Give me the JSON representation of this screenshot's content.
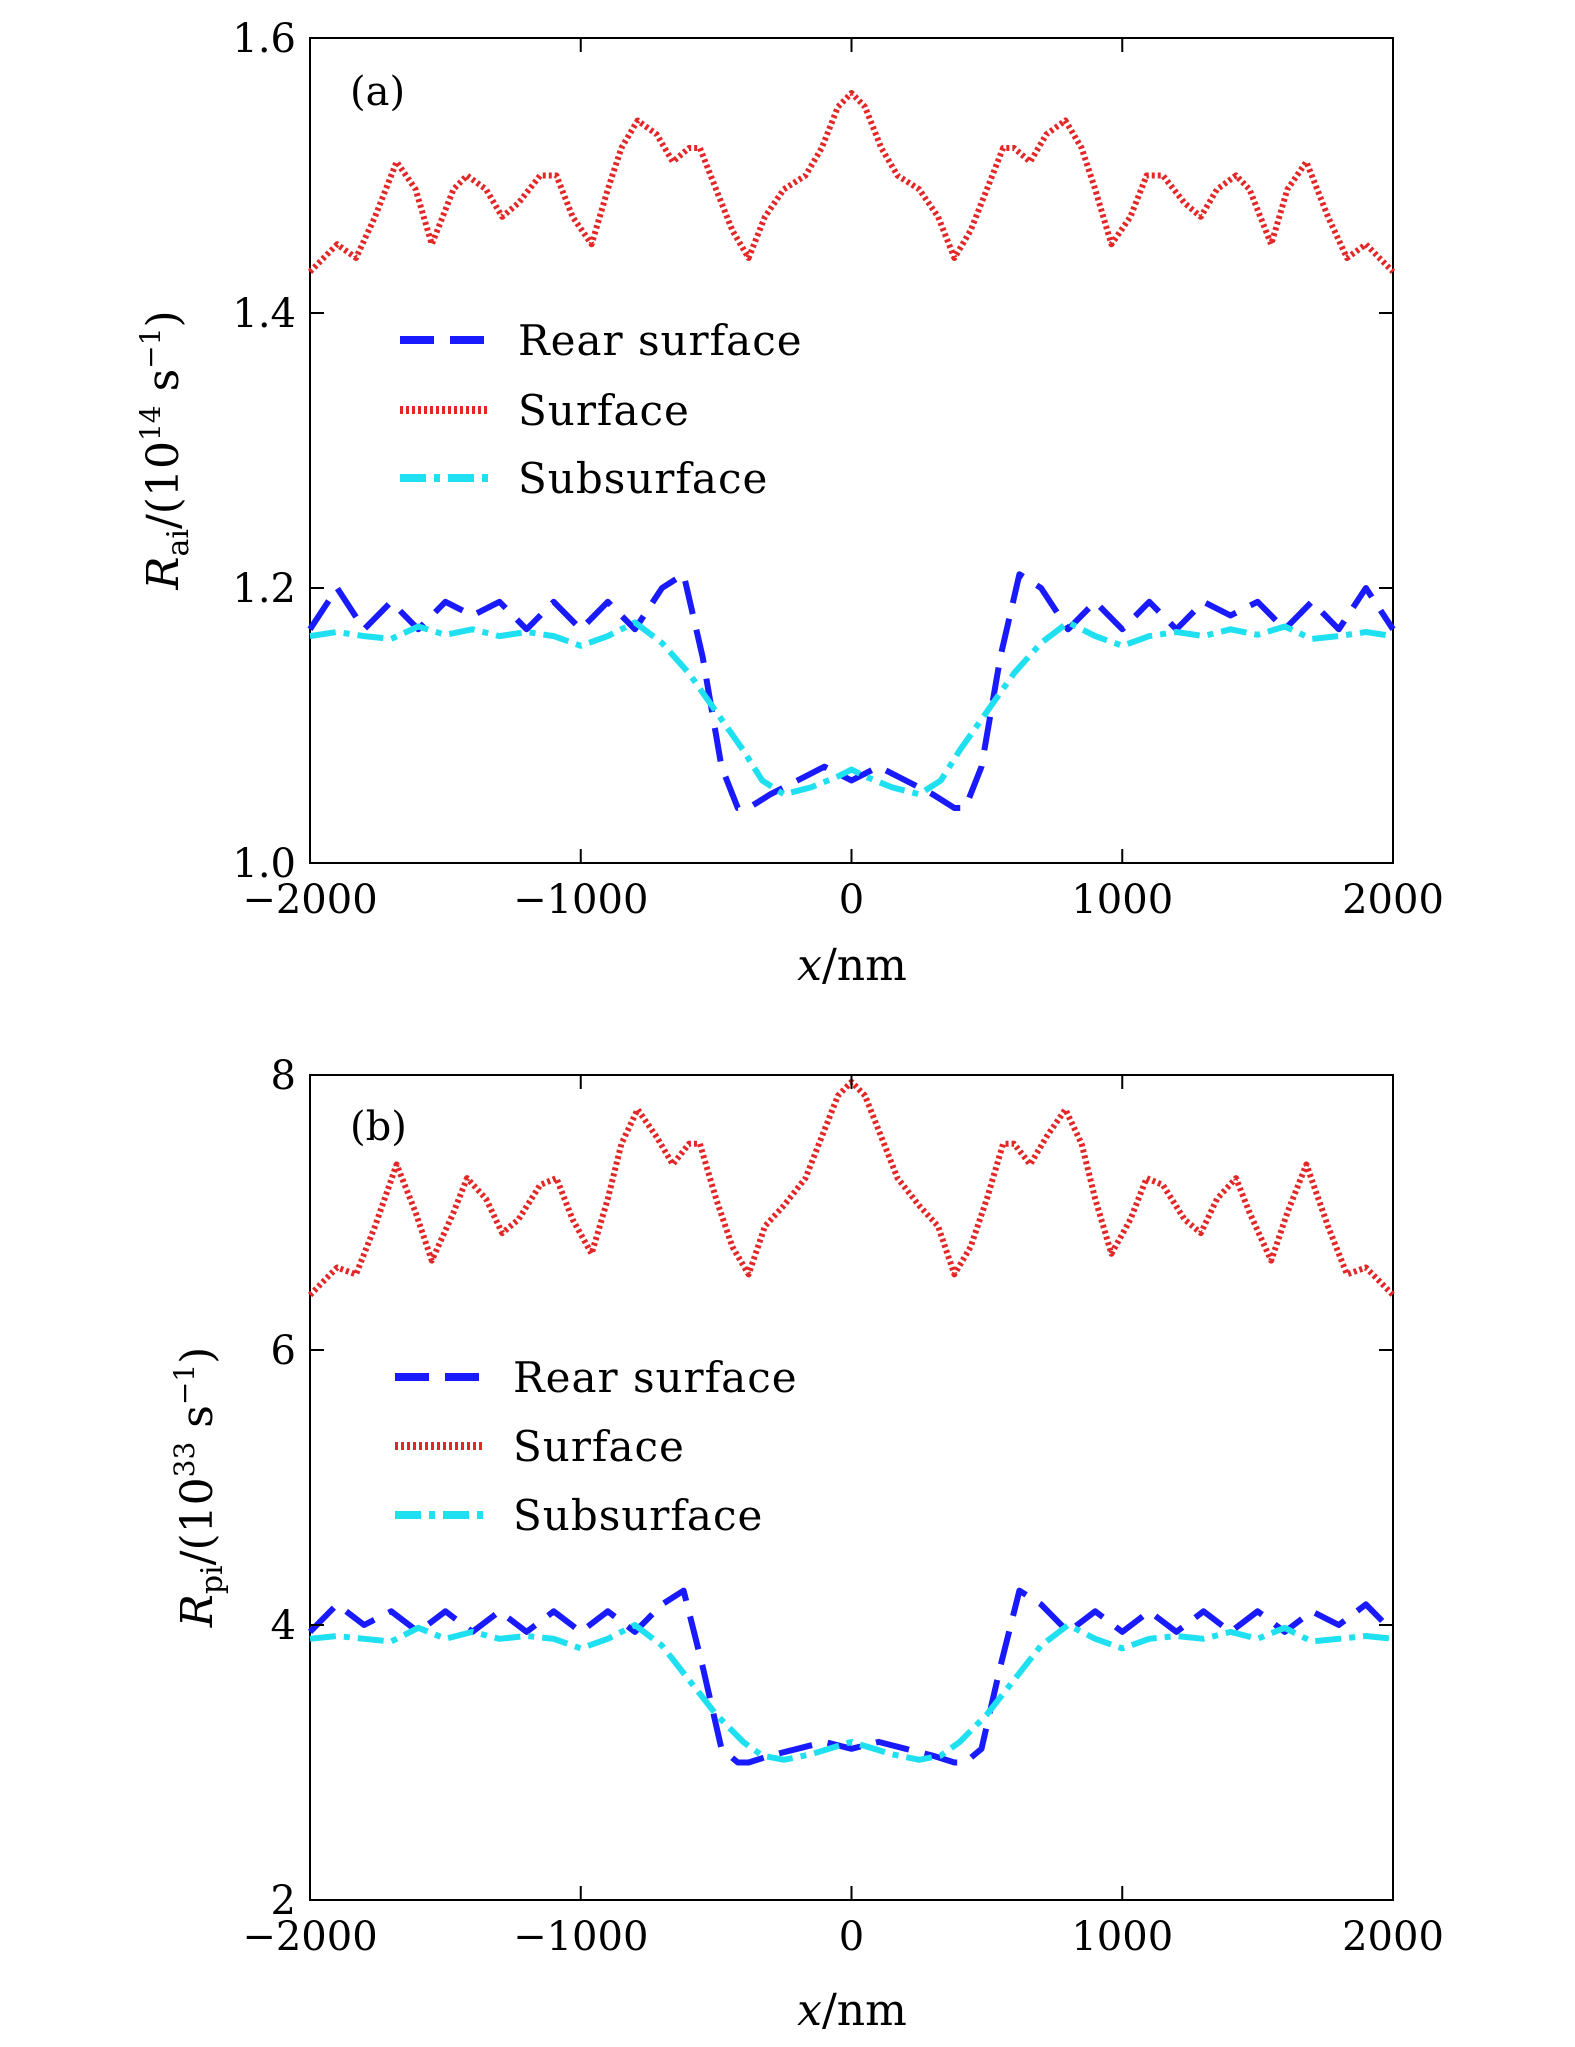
{
  "chart_data": [
    {
      "type": "line",
      "panel_label": "(a)",
      "xlabel_var": "x",
      "xlabel_unit": "/nm",
      "ylabel_var": "R",
      "ylabel_sub": "ai",
      "ylabel_unit_pre": "/(10",
      "ylabel_unit_exp": "14",
      "ylabel_unit_post": " s",
      "ylabel_unit_exp2": "−1",
      "ylabel_unit_close": ")",
      "xlim": [
        -2000,
        2000
      ],
      "ylim": [
        1.0,
        1.6
      ],
      "xticks": [
        -2000,
        -1000,
        0,
        1000,
        2000
      ],
      "xtick_labels": [
        "−2000",
        "−1000",
        "0",
        "1000",
        "2000"
      ],
      "yticks": [
        1.0,
        1.2,
        1.4,
        1.6
      ],
      "ytick_labels": [
        "1.0",
        "1.2",
        "1.4",
        "1.6"
      ],
      "grid": false,
      "legend_position": "middle-left",
      "series": [
        {
          "name": "Rear surface",
          "color": "#1a1aff",
          "style": "dashed",
          "x": [
            -2000,
            -1900,
            -1800,
            -1700,
            -1600,
            -1500,
            -1400,
            -1300,
            -1200,
            -1100,
            -1000,
            -900,
            -800,
            -700,
            -620,
            -550,
            -480,
            -420,
            -380,
            -300,
            -200,
            -100,
            0,
            100,
            200,
            300,
            380,
            420,
            480,
            550,
            620,
            700,
            800,
            900,
            1000,
            1100,
            1200,
            1300,
            1400,
            1500,
            1600,
            1700,
            1800,
            1900,
            2000
          ],
          "y": [
            1.17,
            1.2,
            1.17,
            1.19,
            1.17,
            1.19,
            1.18,
            1.19,
            1.17,
            1.19,
            1.17,
            1.19,
            1.17,
            1.2,
            1.21,
            1.15,
            1.07,
            1.04,
            1.04,
            1.05,
            1.06,
            1.07,
            1.06,
            1.07,
            1.06,
            1.05,
            1.04,
            1.04,
            1.07,
            1.15,
            1.21,
            1.2,
            1.17,
            1.19,
            1.17,
            1.19,
            1.17,
            1.19,
            1.18,
            1.19,
            1.17,
            1.19,
            1.17,
            1.2,
            1.17
          ]
        },
        {
          "name": "Surface",
          "color": "#e32626",
          "style": "dotted",
          "x": [
            -2000,
            -1900,
            -1830,
            -1760,
            -1680,
            -1610,
            -1550,
            -1470,
            -1420,
            -1350,
            -1290,
            -1230,
            -1150,
            -1090,
            -1030,
            -960,
            -900,
            -850,
            -790,
            -720,
            -660,
            -600,
            -560,
            -500,
            -440,
            -380,
            -320,
            -250,
            -170,
            -110,
            -50,
            0,
            50,
            110,
            170,
            250,
            320,
            380,
            440,
            500,
            560,
            600,
            660,
            720,
            790,
            850,
            900,
            960,
            1030,
            1090,
            1150,
            1230,
            1290,
            1350,
            1420,
            1470,
            1550,
            1610,
            1680,
            1760,
            1830,
            1900,
            2000
          ],
          "y": [
            1.43,
            1.45,
            1.44,
            1.47,
            1.51,
            1.49,
            1.45,
            1.49,
            1.5,
            1.49,
            1.47,
            1.48,
            1.5,
            1.5,
            1.47,
            1.45,
            1.49,
            1.52,
            1.54,
            1.53,
            1.51,
            1.52,
            1.52,
            1.49,
            1.46,
            1.44,
            1.47,
            1.49,
            1.5,
            1.52,
            1.55,
            1.56,
            1.55,
            1.52,
            1.5,
            1.49,
            1.47,
            1.44,
            1.46,
            1.49,
            1.52,
            1.52,
            1.51,
            1.53,
            1.54,
            1.52,
            1.49,
            1.45,
            1.47,
            1.5,
            1.5,
            1.48,
            1.47,
            1.49,
            1.5,
            1.49,
            1.45,
            1.49,
            1.51,
            1.47,
            1.44,
            1.45,
            1.43
          ]
        },
        {
          "name": "Subsurface",
          "color": "#1fe0f0",
          "style": "dashdot",
          "x": [
            -2000,
            -1900,
            -1800,
            -1700,
            -1600,
            -1500,
            -1400,
            -1300,
            -1200,
            -1100,
            -1000,
            -900,
            -800,
            -700,
            -600,
            -500,
            -400,
            -330,
            -250,
            -150,
            -50,
            0,
            50,
            150,
            250,
            330,
            400,
            500,
            600,
            700,
            800,
            900,
            1000,
            1100,
            1200,
            1300,
            1400,
            1500,
            1600,
            1700,
            1800,
            1900,
            2000
          ],
          "y": [
            1.165,
            1.168,
            1.165,
            1.163,
            1.172,
            1.166,
            1.17,
            1.165,
            1.168,
            1.165,
            1.158,
            1.165,
            1.175,
            1.16,
            1.138,
            1.11,
            1.082,
            1.06,
            1.05,
            1.055,
            1.063,
            1.068,
            1.063,
            1.055,
            1.05,
            1.06,
            1.082,
            1.11,
            1.138,
            1.16,
            1.175,
            1.165,
            1.158,
            1.165,
            1.168,
            1.165,
            1.17,
            1.166,
            1.172,
            1.163,
            1.165,
            1.168,
            1.165
          ]
        }
      ]
    },
    {
      "type": "line",
      "panel_label": "(b)",
      "xlabel_var": "x",
      "xlabel_unit": "/nm",
      "ylabel_var": "R",
      "ylabel_sub": "pi",
      "ylabel_unit_pre": "/(10",
      "ylabel_unit_exp": "33",
      "ylabel_unit_post": " s",
      "ylabel_unit_exp2": "−1",
      "ylabel_unit_close": ")",
      "xlim": [
        -2000,
        2000
      ],
      "ylim": [
        2,
        8
      ],
      "xticks": [
        -2000,
        -1000,
        0,
        1000,
        2000
      ],
      "xtick_labels": [
        "−2000",
        "−1000",
        "0",
        "1000",
        "2000"
      ],
      "yticks": [
        2,
        4,
        6,
        8
      ],
      "ytick_labels": [
        "2",
        "4",
        "6",
        "8"
      ],
      "grid": false,
      "legend_position": "middle-left",
      "series": [
        {
          "name": "Rear surface",
          "color": "#1a1aff",
          "style": "dashed",
          "x": [
            -2000,
            -1900,
            -1800,
            -1700,
            -1600,
            -1500,
            -1400,
            -1300,
            -1200,
            -1100,
            -1000,
            -900,
            -800,
            -700,
            -620,
            -550,
            -480,
            -420,
            -380,
            -300,
            -200,
            -100,
            0,
            100,
            200,
            300,
            380,
            420,
            480,
            550,
            620,
            700,
            800,
            900,
            1000,
            1100,
            1200,
            1300,
            1400,
            1500,
            1600,
            1700,
            1800,
            1900,
            2000
          ],
          "y": [
            3.95,
            4.15,
            4.0,
            4.1,
            3.95,
            4.1,
            3.95,
            4.1,
            3.95,
            4.1,
            3.95,
            4.1,
            3.95,
            4.15,
            4.25,
            3.7,
            3.1,
            3.0,
            3.0,
            3.05,
            3.1,
            3.15,
            3.1,
            3.15,
            3.1,
            3.05,
            3.0,
            3.0,
            3.1,
            3.7,
            4.25,
            4.15,
            3.95,
            4.1,
            3.95,
            4.1,
            3.95,
            4.1,
            3.95,
            4.1,
            3.95,
            4.1,
            4.0,
            4.15,
            3.95
          ]
        },
        {
          "name": "Surface",
          "color": "#e32626",
          "style": "dotted",
          "x": [
            -2000,
            -1900,
            -1830,
            -1760,
            -1680,
            -1610,
            -1550,
            -1470,
            -1420,
            -1350,
            -1290,
            -1230,
            -1150,
            -1090,
            -1030,
            -960,
            -900,
            -850,
            -790,
            -720,
            -660,
            -600,
            -560,
            -500,
            -440,
            -380,
            -320,
            -250,
            -170,
            -110,
            -50,
            0,
            50,
            110,
            170,
            250,
            320,
            380,
            440,
            500,
            560,
            600,
            660,
            720,
            790,
            850,
            900,
            960,
            1030,
            1090,
            1150,
            1230,
            1290,
            1350,
            1420,
            1470,
            1550,
            1610,
            1680,
            1760,
            1830,
            1900,
            2000
          ],
          "y": [
            6.4,
            6.6,
            6.55,
            6.9,
            7.35,
            7.0,
            6.65,
            7.0,
            7.25,
            7.1,
            6.85,
            6.95,
            7.2,
            7.25,
            6.95,
            6.7,
            7.1,
            7.5,
            7.75,
            7.55,
            7.35,
            7.5,
            7.5,
            7.1,
            6.75,
            6.55,
            6.9,
            7.05,
            7.25,
            7.55,
            7.85,
            7.95,
            7.85,
            7.55,
            7.25,
            7.05,
            6.9,
            6.55,
            6.75,
            7.1,
            7.5,
            7.5,
            7.35,
            7.55,
            7.75,
            7.5,
            7.1,
            6.7,
            6.95,
            7.25,
            7.2,
            6.95,
            6.85,
            7.1,
            7.25,
            7.0,
            6.65,
            7.0,
            7.35,
            6.9,
            6.55,
            6.6,
            6.4
          ]
        },
        {
          "name": "Subsurface",
          "color": "#1fe0f0",
          "style": "dashdot",
          "x": [
            -2000,
            -1900,
            -1800,
            -1700,
            -1600,
            -1500,
            -1400,
            -1300,
            -1200,
            -1100,
            -1000,
            -900,
            -800,
            -700,
            -600,
            -500,
            -400,
            -330,
            -250,
            -150,
            -50,
            0,
            50,
            150,
            250,
            330,
            400,
            500,
            600,
            700,
            800,
            900,
            1000,
            1100,
            1200,
            1300,
            1400,
            1500,
            1600,
            1700,
            1800,
            1900,
            2000
          ],
          "y": [
            3.9,
            3.92,
            3.9,
            3.88,
            3.98,
            3.9,
            3.95,
            3.9,
            3.92,
            3.9,
            3.83,
            3.9,
            4.0,
            3.85,
            3.6,
            3.35,
            3.15,
            3.05,
            3.02,
            3.06,
            3.12,
            3.15,
            3.12,
            3.06,
            3.02,
            3.05,
            3.15,
            3.35,
            3.6,
            3.85,
            4.0,
            3.9,
            3.83,
            3.9,
            3.92,
            3.9,
            3.95,
            3.9,
            3.98,
            3.88,
            3.9,
            3.92,
            3.9
          ]
        }
      ]
    }
  ]
}
